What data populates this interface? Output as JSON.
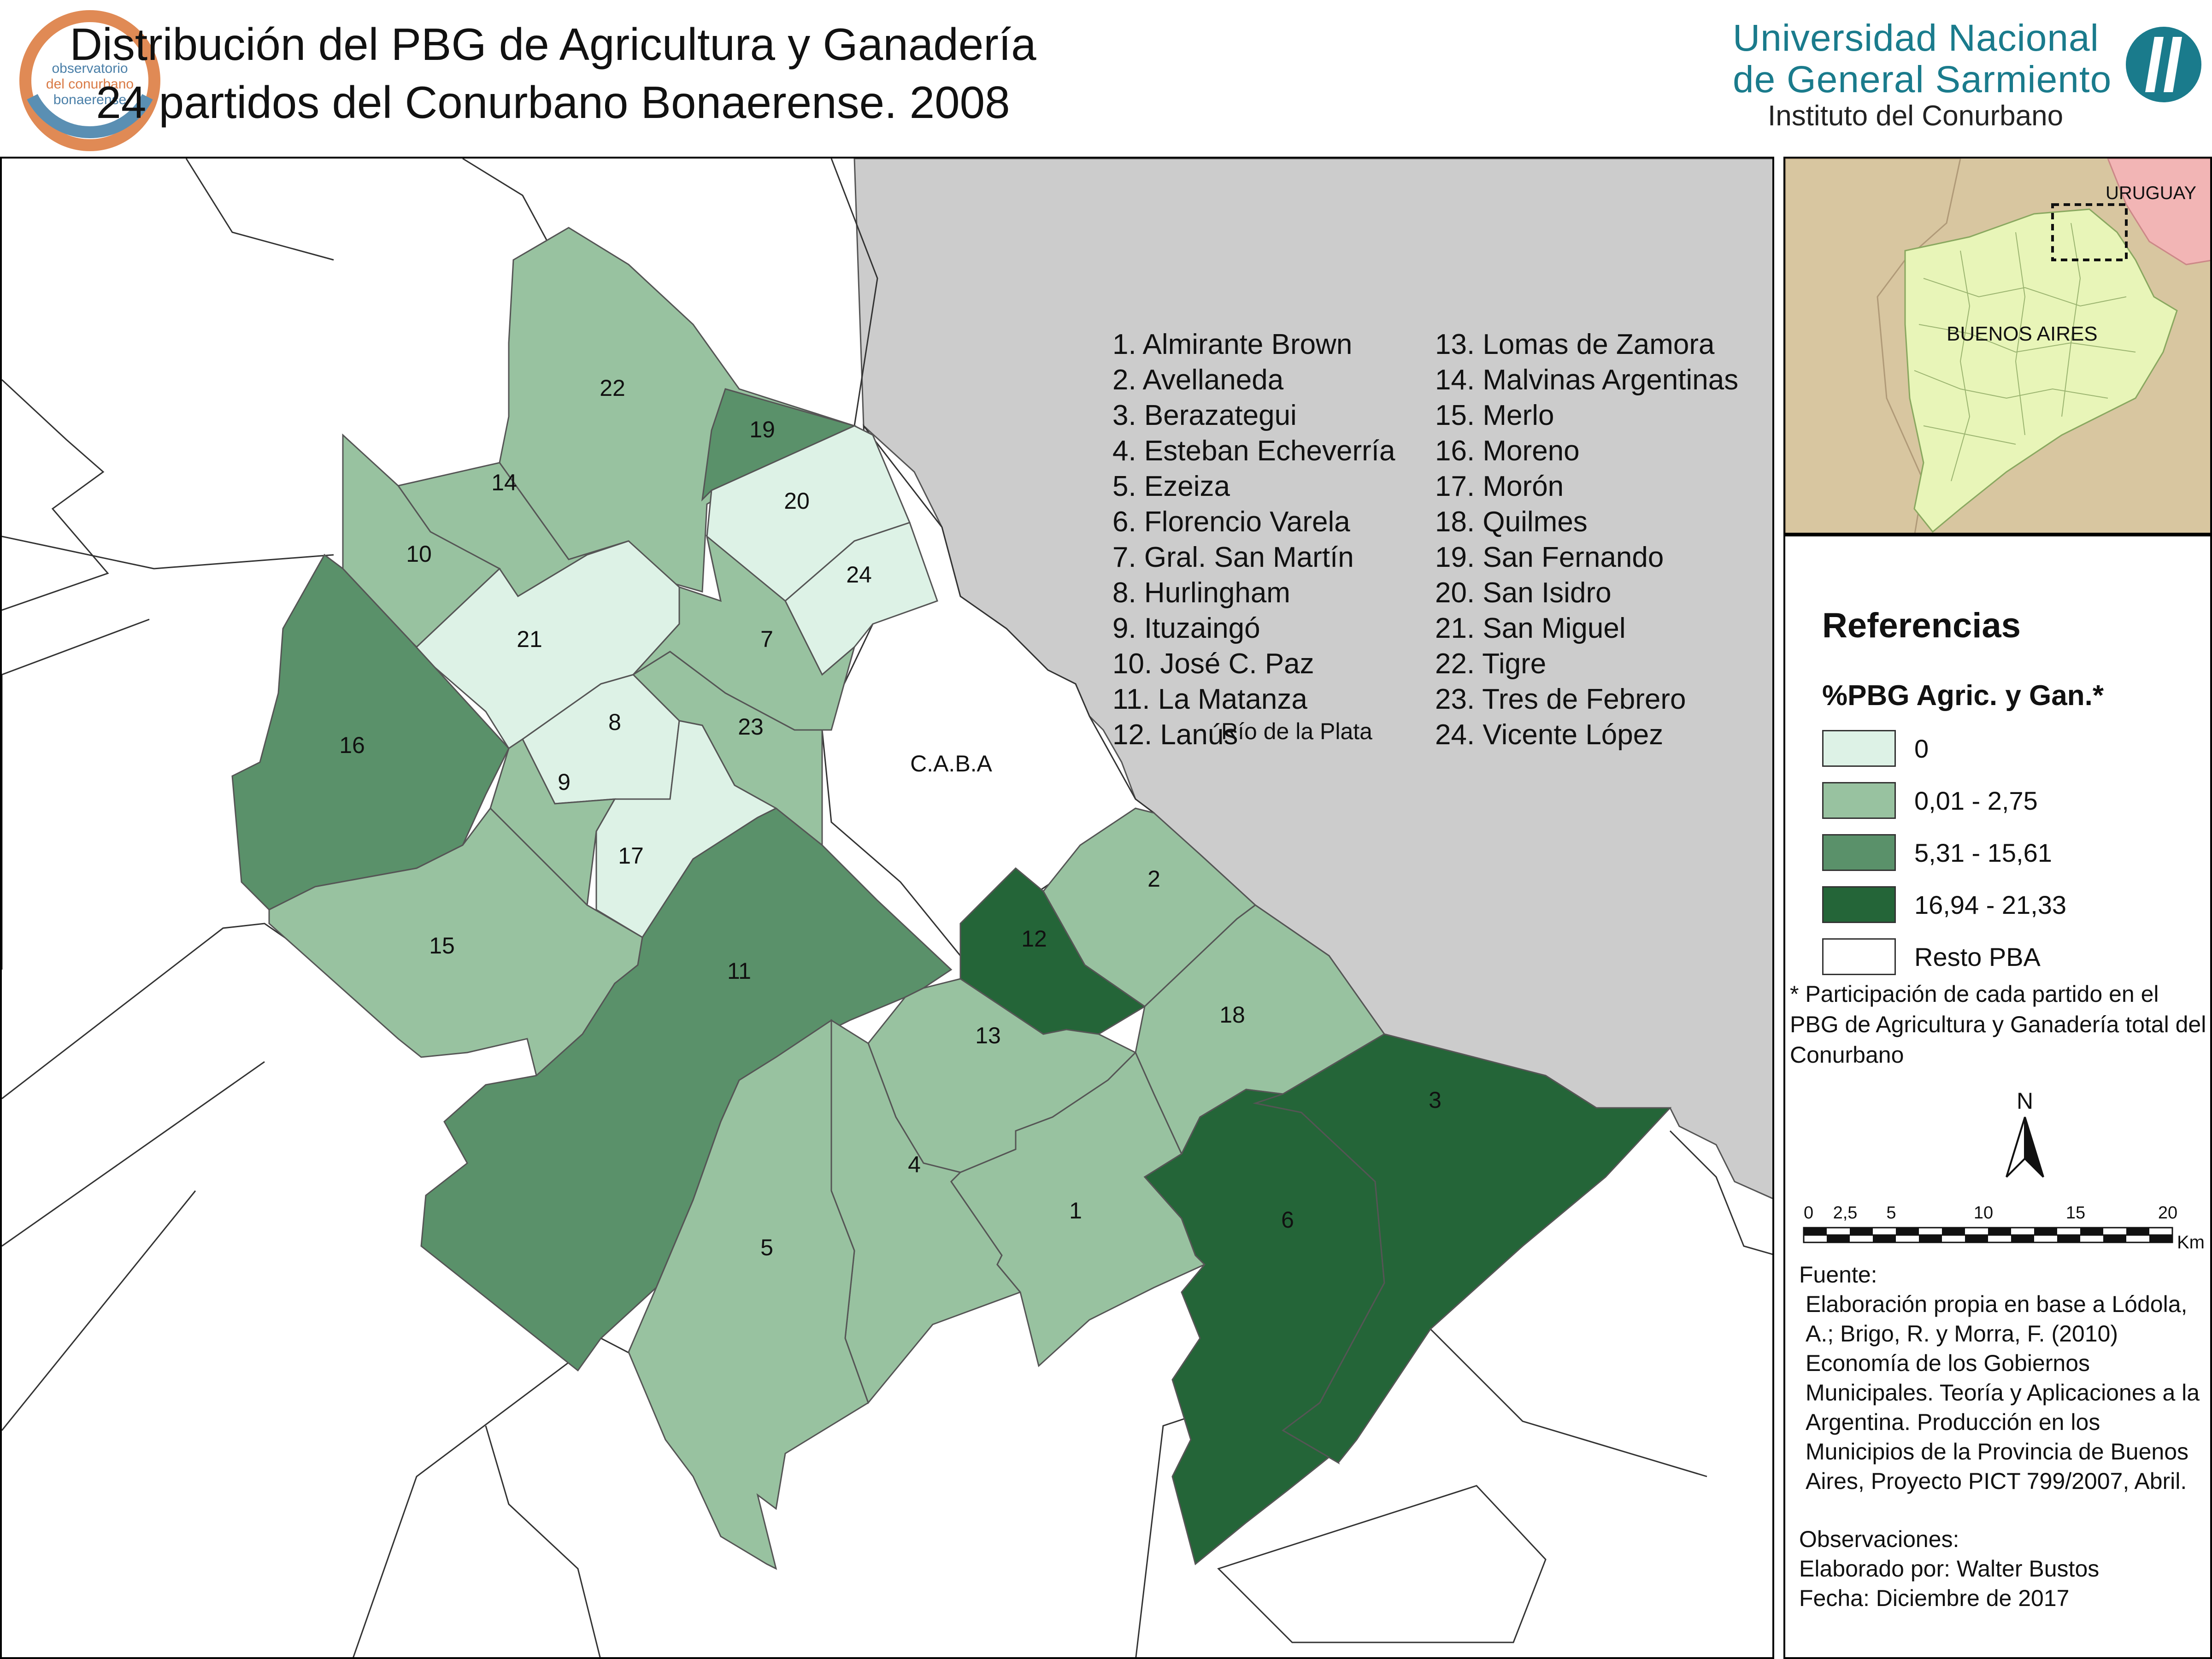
{
  "header": {
    "title_line1": "Distribución del PBG de Agricultura y Ganadería",
    "title_line2": "24 partidos del Conurbano Bonaerense. 2008",
    "logo_left": {
      "line1": "observatorio",
      "line2": "del conurbano",
      "line3": "bonaerense"
    },
    "university_line1": "Universidad Nacional",
    "university_line2": "de General Sarmiento",
    "institute": "Instituto del Conurbano"
  },
  "map": {
    "river_label": "Río de la Plata",
    "caba_label": "C.A.B.A",
    "fill_colors": {
      "cero": "#ddf2e6",
      "bajo": "#98c2a0",
      "medio": "#5a916a",
      "alto": "#246538",
      "resto": "#ffffff",
      "rio": "#cccccc"
    },
    "partidos": [
      {
        "num": "1",
        "name": "Almirante Brown",
        "class": "bajo"
      },
      {
        "num": "2",
        "name": "Avellaneda",
        "class": "bajo"
      },
      {
        "num": "3",
        "name": "Berazategui",
        "class": "alto"
      },
      {
        "num": "4",
        "name": "Esteban Echeverría",
        "class": "bajo"
      },
      {
        "num": "5",
        "name": "Ezeiza",
        "class": "bajo"
      },
      {
        "num": "6",
        "name": "Florencio Varela",
        "class": "alto"
      },
      {
        "num": "7",
        "name": "Gral. San Martín",
        "class": "bajo"
      },
      {
        "num": "8",
        "name": "Hurlingham",
        "class": "cero"
      },
      {
        "num": "9",
        "name": "Ituzaingó",
        "class": "bajo"
      },
      {
        "num": "10",
        "name": "José C. Paz",
        "class": "bajo"
      },
      {
        "num": "11",
        "name": "La Matanza",
        "class": "medio"
      },
      {
        "num": "12",
        "name": "Lanús",
        "class": "alto"
      },
      {
        "num": "13",
        "name": "Lomas de Zamora",
        "class": "bajo"
      },
      {
        "num": "14",
        "name": "Malvinas Argentinas",
        "class": "bajo"
      },
      {
        "num": "15",
        "name": "Merlo",
        "class": "bajo"
      },
      {
        "num": "16",
        "name": "Moreno",
        "class": "medio"
      },
      {
        "num": "17",
        "name": "Morón",
        "class": "cero"
      },
      {
        "num": "18",
        "name": "Quilmes",
        "class": "bajo"
      },
      {
        "num": "19",
        "name": "San Fernando",
        "class": "medio"
      },
      {
        "num": "20",
        "name": "San Isidro",
        "class": "cero"
      },
      {
        "num": "21",
        "name": "San Miguel",
        "class": "cero"
      },
      {
        "num": "22",
        "name": "Tigre",
        "class": "bajo"
      },
      {
        "num": "23",
        "name": "Tres de Febrero",
        "class": "bajo"
      },
      {
        "num": "24",
        "name": "Vicente López",
        "class": "cero"
      }
    ],
    "list_col1": [
      "1. Almirante Brown",
      "2. Avellaneda",
      "3. Berazategui",
      "4. Esteban Echeverría",
      "5. Ezeiza",
      "6. Florencio Varela",
      "7. Gral. San Martín",
      "8. Hurlingham",
      "9. Ituzaingó",
      "10. José C. Paz",
      "11. La Matanza",
      "12. Lanús"
    ],
    "list_col2": [
      "13. Lomas de Zamora",
      "14. Malvinas Argentinas",
      "15. Merlo",
      "16. Moreno",
      "17. Morón",
      "18. Quilmes",
      "19. San Fernando",
      "20. San Isidro",
      "21. San Miguel",
      "22. Tigre",
      "23. Tres de Febrero",
      "24. Vicente López"
    ]
  },
  "inset": {
    "country_label": "URUGUAY",
    "province_label": "BUENOS AIRES"
  },
  "references": {
    "title": "Referencias",
    "subtitle": "%PBG Agric. y Gan.*",
    "classes": [
      {
        "label": "0",
        "color": "#ddf2e6"
      },
      {
        "label": "0,01 - 2,75",
        "color": "#98c2a0"
      },
      {
        "label": "5,31 - 15,61",
        "color": "#5a916a"
      },
      {
        "label": "16,94 - 21,33",
        "color": "#246538"
      },
      {
        "label": "Resto PBA",
        "color": "#ffffff"
      }
    ],
    "note": "* Participación de cada partido en el PBG de Agricultura y Ganadería total del Conurbano",
    "north_label": "N",
    "scale_ticks": [
      "0",
      "2,5",
      "5",
      "10",
      "15",
      "20"
    ],
    "scale_unit": "Km.",
    "fuente_heading": "Fuente:",
    "fuente_text": "Elaboración propia en base a Lódola, A.; Brigo, R. y Morra, F. (2010) Economía de los Gobiernos Municipales. Teoría y Aplicaciones a la Argentina. Producción en los Municipios de la Provincia de Buenos Aires, Proyecto PICT 799/2007, Abril.",
    "observaciones": "Observaciones:",
    "elaborado": "Elaborado por: Walter Bustos",
    "fecha": "Fecha: Diciembre de 2017"
  }
}
